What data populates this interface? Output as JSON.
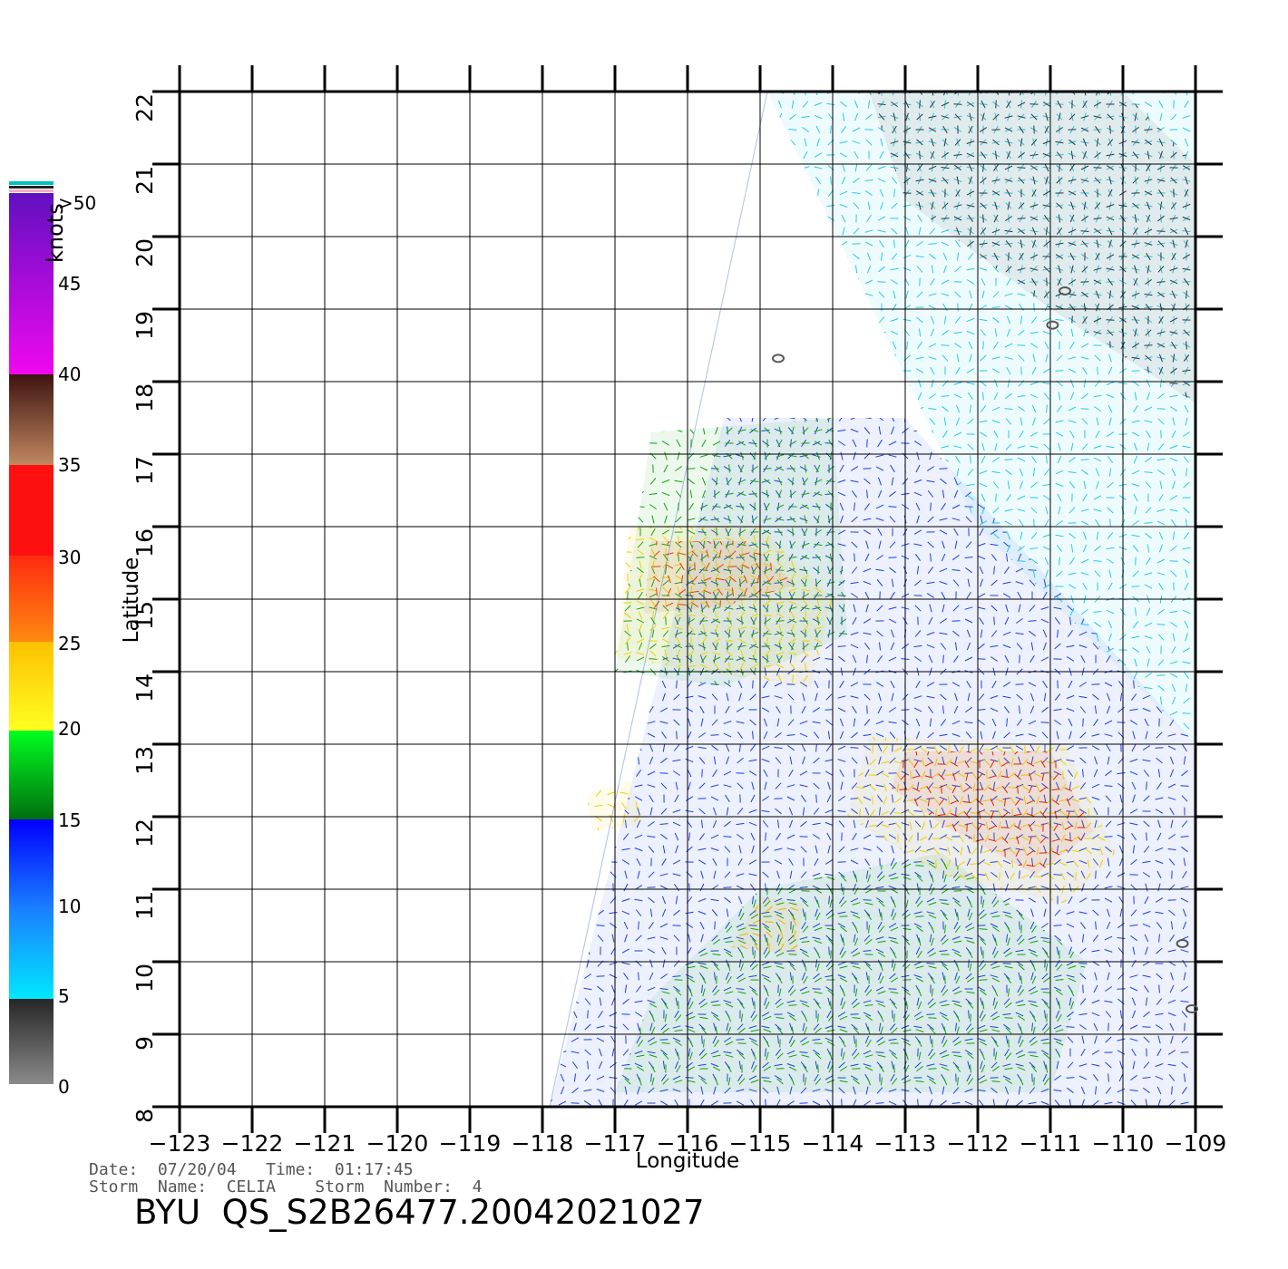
{
  "colorbar": {
    "unit_label": "knots",
    "top_label": ">50",
    "tick_labels": [
      "45",
      "40",
      "35",
      "30",
      "25",
      "20",
      "15",
      "10",
      "5",
      "0"
    ]
  },
  "plot": {
    "lon_ticks": [
      "−123",
      "−122",
      "−121",
      "−120",
      "−119",
      "−118",
      "−117",
      "−116",
      "−115",
      "−114",
      "−113",
      "−112",
      "−111",
      "−110",
      "−109"
    ],
    "lat_ticks": [
      "22",
      "21",
      "20",
      "19",
      "18",
      "17",
      "16",
      "15",
      "14",
      "13",
      "12",
      "11",
      "10",
      "9",
      "8"
    ],
    "xlabel": "Longitude",
    "ylabel": "Latitude"
  },
  "meta": {
    "date_line": "Date:  07/20/04   Time:  01:17:45",
    "storm_line": "Storm  Name:  CELIA    Storm  Number:  4",
    "product_id": "BYU  QS_S2B26477.20042021027"
  },
  "map_data": {
    "lon_range": [
      -123,
      -109
    ],
    "lat_range": [
      8,
      22
    ],
    "swath_polygon": [
      [
        -117.9,
        8.0
      ],
      [
        -109.0,
        8.0
      ],
      [
        -109.0,
        22.0
      ],
      [
        -114.9,
        22.0
      ]
    ],
    "wind_regions": [
      {
        "speed": "10-15 kt",
        "color": "#1a3fe0",
        "polygon": [
          [
            -117.9,
            8.0
          ],
          [
            -109.0,
            8.0
          ],
          [
            -109.0,
            13.0
          ],
          [
            -113.0,
            17.5
          ],
          [
            -115.5,
            17.5
          ]
        ]
      },
      {
        "speed": "5-10 kt",
        "color": "#27c8e8",
        "polygon": [
          [
            -114.9,
            22.0
          ],
          [
            -109.0,
            22.0
          ],
          [
            -109.0,
            13.0
          ],
          [
            -112.0,
            16.0
          ]
        ]
      },
      {
        "speed": "0-5 kt",
        "color": "#333333",
        "polygon": [
          [
            -113.5,
            22.0
          ],
          [
            -110.0,
            22.0
          ],
          [
            -109.0,
            21.0
          ],
          [
            -109.0,
            17.7
          ],
          [
            -111.0,
            19.0
          ],
          [
            -113.0,
            20.5
          ]
        ]
      },
      {
        "speed": "15-20 kt",
        "color": "#10a010",
        "polygon": [
          [
            -117.0,
            8.2
          ],
          [
            -111.0,
            8.2
          ],
          [
            -110.5,
            10.0
          ],
          [
            -112.5,
            11.5
          ],
          [
            -115.0,
            11.0
          ],
          [
            -116.5,
            9.5
          ]
        ]
      },
      {
        "speed": "15-20 kt",
        "color": "#10a010",
        "polygon": [
          [
            -116.5,
            17.3
          ],
          [
            -114.0,
            17.5
          ],
          [
            -113.8,
            14.5
          ],
          [
            -115.5,
            13.8
          ],
          [
            -117.0,
            14.0
          ]
        ]
      },
      {
        "speed": "20-25 kt",
        "color": "#f0d000",
        "polygon": [
          [
            -116.8,
            16.0
          ],
          [
            -115.0,
            16.0
          ],
          [
            -114.0,
            15.0
          ],
          [
            -114.3,
            13.8
          ],
          [
            -115.8,
            14.0
          ],
          [
            -117.0,
            14.2
          ]
        ]
      },
      {
        "speed": "25-35 kt",
        "color": "#e04000",
        "polygon": [
          [
            -116.5,
            15.8
          ],
          [
            -115.2,
            15.8
          ],
          [
            -114.5,
            15.2
          ],
          [
            -115.5,
            14.9
          ],
          [
            -116.6,
            14.8
          ]
        ]
      },
      {
        "speed": "20-25 kt",
        "color": "#f0d000",
        "polygon": [
          [
            -113.5,
            13.1
          ],
          [
            -110.8,
            13.0
          ],
          [
            -110.1,
            11.5
          ],
          [
            -110.8,
            10.8
          ],
          [
            -112.5,
            11.2
          ],
          [
            -113.8,
            12.0
          ]
        ]
      },
      {
        "speed": "25-35 kt",
        "color": "#e02000",
        "polygon": [
          [
            -113.0,
            12.9
          ],
          [
            -111.0,
            12.9
          ],
          [
            -110.4,
            11.8
          ],
          [
            -111.2,
            11.2
          ],
          [
            -112.5,
            11.9
          ],
          [
            -113.2,
            12.4
          ]
        ]
      },
      {
        "speed": "20-25 kt",
        "color": "#f0b000",
        "polygon": [
          [
            -115.0,
            10.9
          ],
          [
            -114.4,
            10.8
          ],
          [
            -114.5,
            10.1
          ],
          [
            -115.4,
            10.2
          ]
        ]
      },
      {
        "speed": "20-25 kt",
        "color": "#f0d000",
        "polygon": [
          [
            -117.4,
            12.3
          ],
          [
            -116.8,
            12.5
          ],
          [
            -116.6,
            11.9
          ],
          [
            -117.3,
            11.8
          ]
        ]
      }
    ],
    "island_outlines": [
      [
        -114.75,
        18.32
      ],
      [
        -110.8,
        19.25
      ],
      [
        -110.97,
        18.78
      ],
      [
        -109.18,
        10.25
      ],
      [
        -109.05,
        9.35
      ]
    ]
  }
}
